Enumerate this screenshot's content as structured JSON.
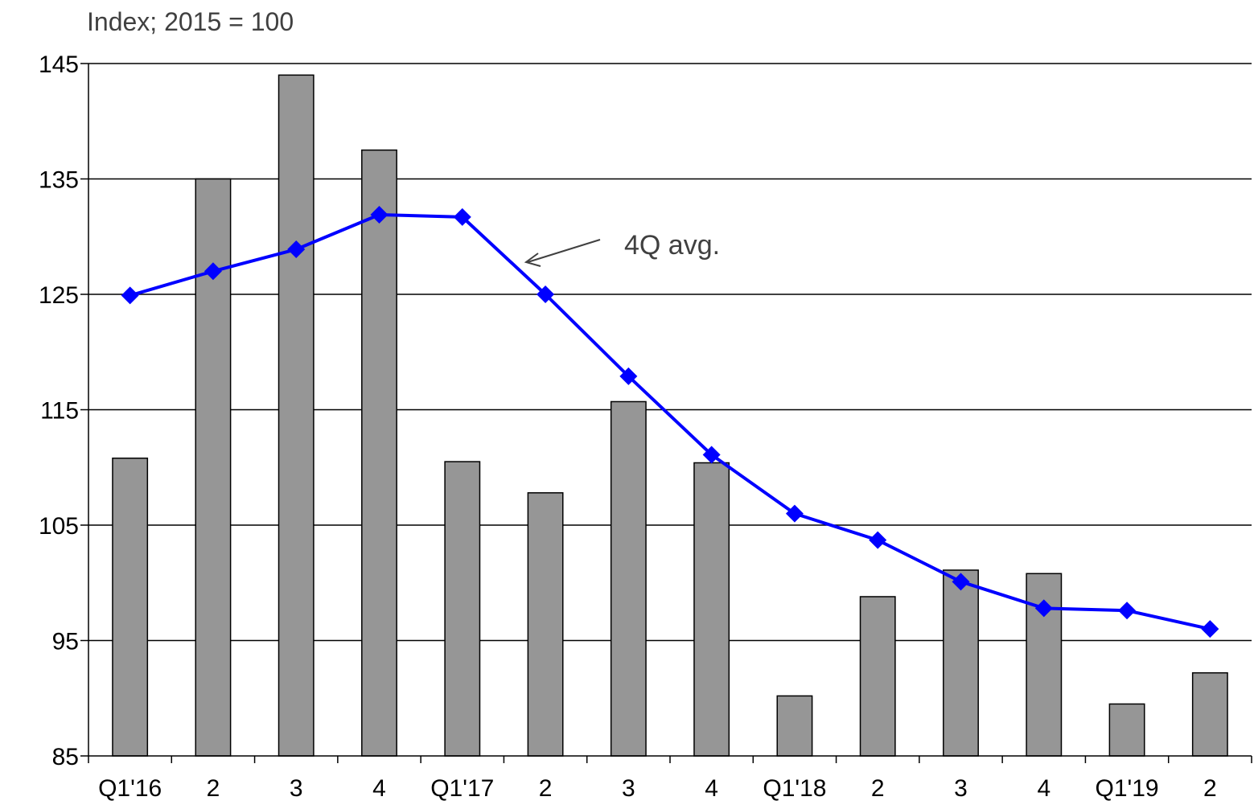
{
  "chart_data": {
    "type": "bar",
    "unit_label": "Index; 2015 = 100",
    "categories": [
      "Q1'16",
      "2",
      "3",
      "4",
      "Q1'17",
      "2",
      "3",
      "4",
      "Q1'18",
      "2",
      "3",
      "4",
      "Q1'19",
      "2"
    ],
    "series": [
      {
        "type": "bar",
        "color": "#969696",
        "values": [
          110.8,
          135.0,
          144.0,
          137.5,
          110.5,
          107.8,
          115.7,
          110.4,
          90.2,
          98.8,
          101.1,
          100.8,
          89.5,
          92.2
        ]
      },
      {
        "name": "4Q avg.",
        "type": "line",
        "color": "#0000ff",
        "marker": "diamond",
        "values": [
          124.9,
          127.0,
          128.9,
          131.9,
          131.7,
          125.0,
          117.9,
          111.1,
          106.0,
          103.7,
          100.1,
          97.8,
          97.6,
          96.0
        ]
      }
    ],
    "annotation": "4Q avg.",
    "ylim": [
      85,
      145
    ],
    "yticks": [
      85,
      95,
      105,
      115,
      125,
      135,
      145
    ],
    "grid": true,
    "legend": "none"
  }
}
